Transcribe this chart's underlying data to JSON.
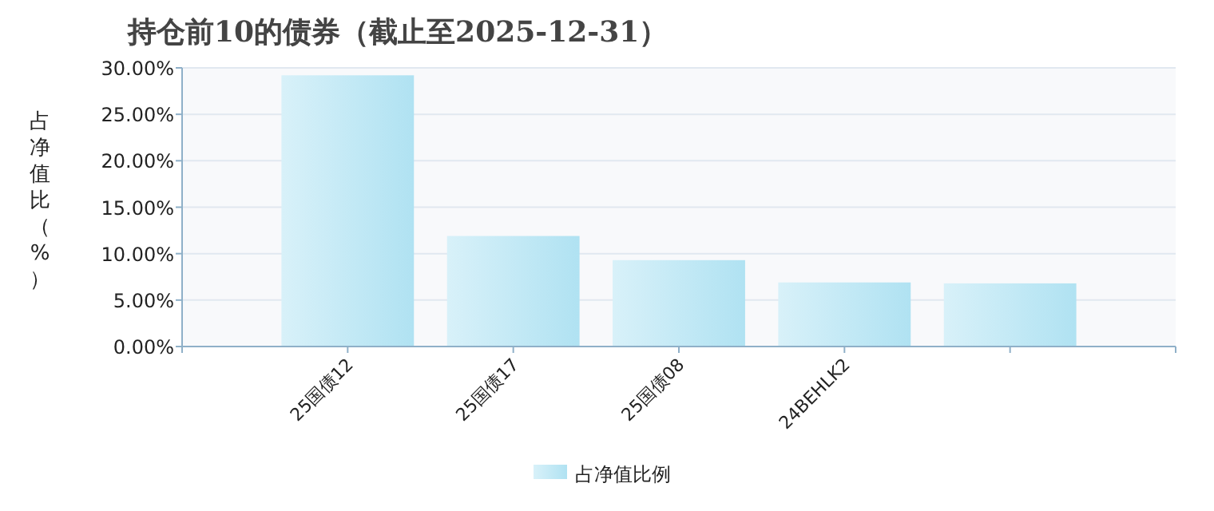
{
  "chart_data": {
    "type": "bar",
    "title": "持仓前10的债券（截止至2025-12-31）",
    "ylabel": "占净值比（%）",
    "categories": [
      "25国债12",
      "25国债17",
      "25国债08",
      "24BEHLK2",
      null
    ],
    "series": [
      {
        "name": "占净值比例",
        "color": "#b0e2f2",
        "values": [
          29.2,
          11.9,
          9.3,
          6.9,
          6.8
        ]
      }
    ],
    "ylim": [
      0,
      30
    ],
    "yticks": [
      {
        "value": 0,
        "label": "0.00%"
      },
      {
        "value": 5,
        "label": "5.00%"
      },
      {
        "value": 10,
        "label": "10.00%"
      },
      {
        "value": 15,
        "label": "15.00%"
      },
      {
        "value": 20,
        "label": "20.00%"
      },
      {
        "value": 25,
        "label": "25.00%"
      },
      {
        "value": 30,
        "label": "30.00%"
      }
    ],
    "grid": "y",
    "legend": "bottom"
  }
}
